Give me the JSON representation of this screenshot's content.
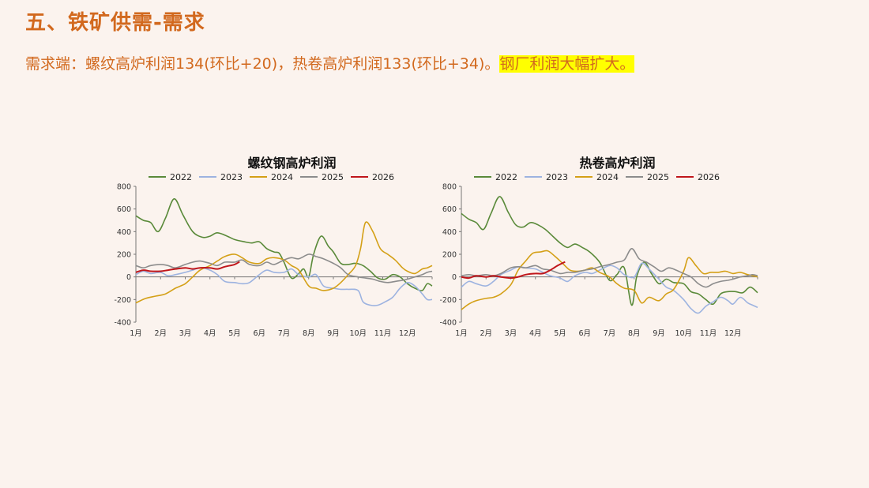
{
  "slide": {
    "title": "五、铁矿供需-需求",
    "summary_part1": "需求端：螺纹高炉利润134(环比+20)，热卷高炉利润133(环比+34)。",
    "summary_highlight": "钢厂利润大幅扩大。"
  },
  "colors": {
    "title": "#d2691e",
    "highlight": "#ffff00",
    "s2022": "#5a8a3a",
    "s2023": "#9db3e0",
    "s2024": "#d4a017",
    "s2025": "#8c8c8c",
    "s2026": "#c0161b"
  },
  "chart_data": [
    {
      "type": "line",
      "title": "螺纹钢高炉利润",
      "ylim": [
        -400,
        800
      ],
      "yticks": [
        -400,
        -200,
        0,
        200,
        400,
        600,
        800
      ],
      "xlim": [
        1,
        13
      ],
      "xtick_labels": [
        "1月",
        "2月",
        "3月",
        "4月",
        "5月",
        "6月",
        "7月",
        "8月",
        "9月",
        "10月",
        "11月",
        "12月"
      ],
      "legend_position": "top",
      "grid": false,
      "series": [
        {
          "name": "2022",
          "color": "#5a8a3a",
          "x": [
            1,
            1.3,
            1.6,
            1.9,
            2.2,
            2.55,
            2.9,
            3.3,
            3.7,
            4,
            4.3,
            4.7,
            5,
            5.4,
            5.7,
            6,
            6.3,
            6.6,
            6.8,
            7,
            7.3,
            7.6,
            7.8,
            8,
            8.2,
            8.5,
            8.8,
            9,
            9.3,
            9.6,
            9.9,
            10.2,
            10.5,
            10.8,
            11.1,
            11.4,
            11.7,
            12,
            12.3,
            12.6,
            12.8,
            13
          ],
          "y": [
            540,
            500,
            480,
            400,
            520,
            690,
            550,
            400,
            350,
            360,
            390,
            360,
            330,
            310,
            300,
            310,
            250,
            220,
            210,
            130,
            -10,
            30,
            70,
            0,
            200,
            360,
            270,
            220,
            120,
            110,
            120,
            100,
            50,
            -10,
            -20,
            20,
            0,
            -60,
            -100,
            -120,
            -60,
            -80
          ]
        },
        {
          "name": "2023",
          "color": "#9db3e0",
          "x": [
            1,
            1.3,
            1.6,
            2,
            2.3,
            2.6,
            3,
            3.3,
            3.6,
            4,
            4.3,
            4.6,
            5,
            5.3,
            5.6,
            6,
            6.3,
            6.6,
            7,
            7.3,
            7.6,
            8,
            8.3,
            8.6,
            9,
            9.3,
            9.6,
            10,
            10.2,
            10.5,
            10.8,
            11.1,
            11.4,
            11.7,
            12,
            12.3,
            12.6,
            12.8,
            13
          ],
          "y": [
            20,
            50,
            30,
            40,
            10,
            20,
            40,
            60,
            80,
            60,
            20,
            -40,
            -50,
            -60,
            -50,
            20,
            60,
            40,
            40,
            70,
            20,
            0,
            20,
            -80,
            -100,
            -110,
            -110,
            -120,
            -220,
            -250,
            -250,
            -220,
            -180,
            -100,
            -50,
            -80,
            -150,
            -200,
            -200
          ]
        },
        {
          "name": "2024",
          "color": "#d4a017",
          "x": [
            1,
            1.4,
            1.8,
            2.2,
            2.6,
            3,
            3.3,
            3.6,
            4,
            4.3,
            4.6,
            5,
            5.3,
            5.6,
            6,
            6.3,
            6.6,
            7,
            7.3,
            7.6,
            8,
            8.3,
            8.6,
            9,
            9.3,
            9.6,
            9.9,
            10.1,
            10.3,
            10.6,
            10.9,
            11.2,
            11.5,
            11.8,
            12,
            12.3,
            12.6,
            12.8,
            13
          ],
          "y": [
            -230,
            -190,
            -170,
            -150,
            -100,
            -60,
            0,
            60,
            100,
            140,
            180,
            200,
            170,
            130,
            120,
            160,
            170,
            150,
            100,
            60,
            -80,
            -100,
            -120,
            -100,
            -50,
            20,
            100,
            250,
            480,
            400,
            250,
            200,
            150,
            80,
            50,
            30,
            70,
            80,
            100
          ]
        },
        {
          "name": "2025",
          "color": "#8c8c8c",
          "x": [
            1,
            1.3,
            1.6,
            2,
            2.3,
            2.6,
            3,
            3.3,
            3.6,
            4,
            4.3,
            4.6,
            5,
            5.3,
            5.6,
            6,
            6.3,
            6.6,
            7,
            7.3,
            7.6,
            8,
            8.3,
            8.6,
            9,
            9.3,
            9.6,
            10,
            10.3,
            10.6,
            10.9,
            11.2,
            11.5,
            11.8,
            12,
            12.3,
            12.6,
            12.8,
            13
          ],
          "y": [
            100,
            80,
            100,
            110,
            100,
            80,
            110,
            130,
            140,
            120,
            100,
            130,
            130,
            150,
            110,
            100,
            130,
            110,
            150,
            170,
            160,
            200,
            180,
            160,
            120,
            80,
            20,
            0,
            -10,
            -20,
            -40,
            -50,
            -40,
            -30,
            -20,
            0,
            20,
            40,
            50
          ]
        },
        {
          "name": "2026",
          "color": "#c0161b",
          "x": [
            1,
            1.3,
            1.6,
            2,
            2.3,
            2.6,
            3,
            3.3,
            3.6,
            4,
            4.3,
            4.6,
            5,
            5.2
          ],
          "y": [
            40,
            60,
            50,
            50,
            60,
            70,
            80,
            70,
            80,
            80,
            70,
            90,
            110,
            134
          ]
        }
      ]
    },
    {
      "type": "line",
      "title": "热卷高炉利润",
      "ylim": [
        -400,
        800
      ],
      "yticks": [
        -400,
        -200,
        0,
        200,
        400,
        600,
        800
      ],
      "xlim": [
        1,
        13
      ],
      "xtick_labels": [
        "1月",
        "2月",
        "3月",
        "4月",
        "5月",
        "6月",
        "7月",
        "8月",
        "9月",
        "10月",
        "11月",
        "12月"
      ],
      "legend_position": "top",
      "grid": false,
      "series": [
        {
          "name": "2022",
          "color": "#5a8a3a",
          "x": [
            1,
            1.3,
            1.6,
            1.9,
            2.2,
            2.55,
            2.9,
            3.2,
            3.5,
            3.8,
            4.1,
            4.4,
            4.7,
            5,
            5.3,
            5.6,
            5.9,
            6.2,
            6.6,
            7,
            7.3,
            7.6,
            7.9,
            8.1,
            8.4,
            8.7,
            9,
            9.3,
            9.6,
            10,
            10.3,
            10.6,
            10.9,
            11.2,
            11.5,
            11.8,
            12.1,
            12.4,
            12.7,
            13
          ],
          "y": [
            560,
            510,
            480,
            420,
            560,
            710,
            570,
            460,
            440,
            480,
            460,
            420,
            360,
            300,
            260,
            290,
            260,
            220,
            130,
            -30,
            20,
            80,
            -250,
            0,
            130,
            30,
            -60,
            -20,
            -50,
            -60,
            -130,
            -150,
            -200,
            -240,
            -150,
            -130,
            -130,
            -140,
            -90,
            -140
          ]
        },
        {
          "name": "2023",
          "color": "#9db3e0",
          "x": [
            1,
            1.3,
            1.6,
            2,
            2.3,
            2.6,
            3,
            3.3,
            3.6,
            4,
            4.3,
            4.6,
            5,
            5.3,
            5.6,
            6,
            6.3,
            6.6,
            7,
            7.3,
            7.6,
            8,
            8.3,
            8.6,
            9,
            9.3,
            9.6,
            10,
            10.3,
            10.6,
            10.9,
            11.2,
            11.5,
            11.8,
            12,
            12.3,
            12.6,
            12.8,
            13
          ],
          "y": [
            -90,
            -40,
            -60,
            -80,
            -40,
            20,
            60,
            90,
            80,
            70,
            40,
            10,
            -10,
            -40,
            10,
            40,
            30,
            60,
            100,
            80,
            20,
            0,
            120,
            70,
            -20,
            -90,
            -120,
            -200,
            -280,
            -320,
            -260,
            -220,
            -180,
            -210,
            -240,
            -180,
            -230,
            -250,
            -270
          ]
        },
        {
          "name": "2024",
          "color": "#d4a017",
          "x": [
            1,
            1.3,
            1.6,
            2,
            2.3,
            2.6,
            3,
            3.3,
            3.6,
            3.9,
            4.2,
            4.5,
            4.8,
            5.1,
            5.4,
            5.7,
            6,
            6.3,
            6.6,
            7,
            7.3,
            7.6,
            8,
            8.3,
            8.6,
            9,
            9.3,
            9.6,
            10,
            10.2,
            10.5,
            10.8,
            11.1,
            11.4,
            11.7,
            12,
            12.3,
            12.6,
            12.8,
            13
          ],
          "y": [
            -290,
            -240,
            -210,
            -190,
            -180,
            -150,
            -70,
            60,
            140,
            210,
            220,
            230,
            180,
            120,
            60,
            50,
            60,
            80,
            40,
            0,
            -60,
            -100,
            -120,
            -230,
            -180,
            -210,
            -150,
            -110,
            50,
            170,
            100,
            30,
            40,
            40,
            50,
            30,
            40,
            20,
            10,
            0
          ]
        },
        {
          "name": "2025",
          "color": "#8c8c8c",
          "x": [
            1,
            1.3,
            1.6,
            2,
            2.3,
            2.6,
            3,
            3.3,
            3.6,
            4,
            4.3,
            4.6,
            5,
            5.3,
            5.6,
            6,
            6.3,
            6.6,
            7,
            7.3,
            7.6,
            7.9,
            8.2,
            8.5,
            8.8,
            9.1,
            9.4,
            9.7,
            10,
            10.3,
            10.6,
            10.9,
            11.2,
            11.5,
            11.8,
            12,
            12.3,
            12.6,
            12.8,
            13
          ],
          "y": [
            10,
            20,
            10,
            20,
            10,
            30,
            80,
            90,
            80,
            100,
            70,
            60,
            30,
            40,
            40,
            60,
            70,
            90,
            110,
            130,
            150,
            250,
            160,
            130,
            90,
            50,
            80,
            60,
            30,
            0,
            -60,
            -90,
            -60,
            -40,
            -30,
            -20,
            0,
            10,
            20,
            10
          ]
        },
        {
          "name": "2026",
          "color": "#c0161b",
          "x": [
            1,
            1.3,
            1.6,
            2,
            2.3,
            2.6,
            3,
            3.3,
            3.6,
            4,
            4.3,
            4.6,
            4.9,
            5.2
          ],
          "y": [
            0,
            -10,
            10,
            0,
            10,
            0,
            -10,
            0,
            20,
            30,
            30,
            60,
            100,
            133
          ]
        }
      ]
    }
  ]
}
